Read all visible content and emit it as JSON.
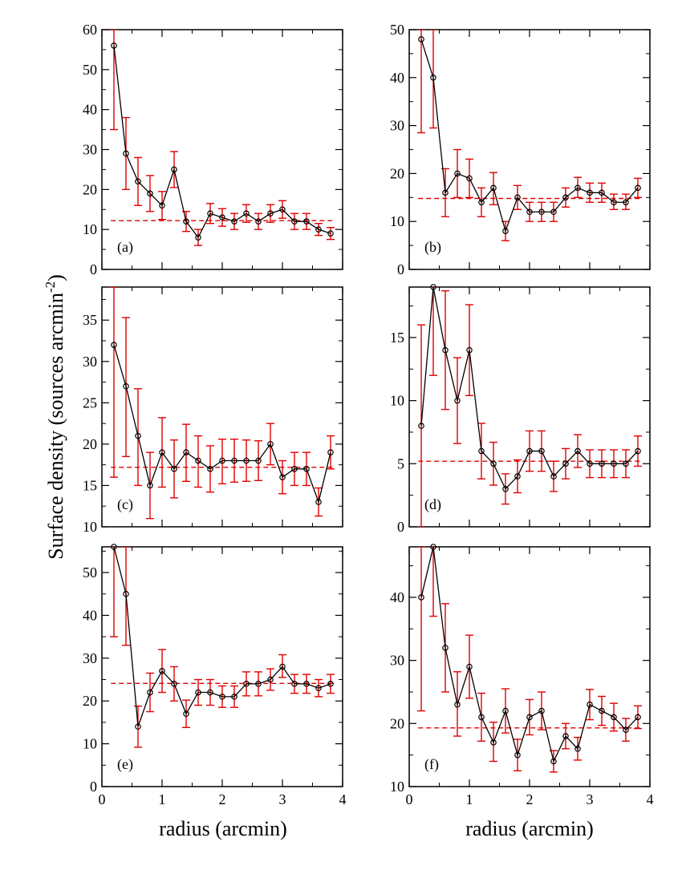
{
  "figure": {
    "ylabel_main": "Surface density (sources arcmin",
    "ylabel_exp": "-2",
    "ylabel_close": ")",
    "xlabel": "radius (arcmin)"
  },
  "colors": {
    "data": "#000000",
    "error": "#e00000",
    "mean": "#e00000"
  },
  "chart_data": [
    {
      "type": "line",
      "panel": "(a)",
      "xlim": [
        0,
        4
      ],
      "ylim": [
        0,
        60
      ],
      "xticks": [
        0,
        1,
        2,
        3,
        4
      ],
      "yticks": [
        0,
        10,
        20,
        30,
        40,
        50,
        60
      ],
      "x": [
        0.2,
        0.4,
        0.6,
        0.8,
        1.0,
        1.2,
        1.4,
        1.6,
        1.8,
        2.0,
        2.2,
        2.4,
        2.6,
        2.8,
        3.0,
        3.2,
        3.4,
        3.6,
        3.8
      ],
      "y": [
        56,
        29,
        22,
        19,
        16,
        25,
        12,
        8,
        14,
        13,
        12,
        14,
        12,
        14,
        15,
        12,
        12,
        10,
        9
      ],
      "yerr_low": [
        35,
        20,
        16,
        14.5,
        12.5,
        20.5,
        9.5,
        6,
        11.5,
        10.8,
        10,
        11.8,
        10,
        11.8,
        12.8,
        10,
        10,
        8.5,
        7.5
      ],
      "yerr_high": [
        60,
        38,
        28,
        23.5,
        19.5,
        29.5,
        14.5,
        10,
        16.5,
        15.2,
        14,
        16.2,
        14,
        16.2,
        17.2,
        14,
        14,
        11.5,
        10.5
      ],
      "mean": 12.2,
      "xtick_labels_shown": false
    },
    {
      "type": "line",
      "panel": "(b)",
      "xlim": [
        0,
        4
      ],
      "ylim": [
        0,
        50
      ],
      "xticks": [
        0,
        1,
        2,
        3,
        4
      ],
      "yticks": [
        0,
        10,
        20,
        30,
        40,
        50
      ],
      "x": [
        0.2,
        0.4,
        0.6,
        0.8,
        1.0,
        1.2,
        1.4,
        1.6,
        1.8,
        2.0,
        2.2,
        2.4,
        2.6,
        2.8,
        3.0,
        3.2,
        3.4,
        3.6,
        3.8
      ],
      "y": [
        48,
        40,
        16,
        20,
        19,
        14,
        17,
        8,
        15,
        12,
        12,
        12,
        15,
        17,
        16,
        16,
        14,
        14,
        17
      ],
      "yerr_low": [
        28.5,
        29.5,
        11,
        15,
        15,
        11,
        13.5,
        6,
        12.5,
        10,
        10,
        10,
        13,
        15,
        14,
        14,
        12.5,
        12.5,
        15
      ],
      "yerr_high": [
        50,
        50,
        21,
        25,
        23,
        17,
        20.2,
        10,
        17.5,
        14,
        14,
        14,
        17,
        19.2,
        18,
        18,
        15.7,
        15.7,
        19
      ],
      "mean": 14.8,
      "xtick_labels_shown": false
    },
    {
      "type": "line",
      "panel": "(c)",
      "xlim": [
        0,
        4
      ],
      "ylim": [
        10,
        39
      ],
      "xticks": [
        0,
        1,
        2,
        3,
        4
      ],
      "yticks": [
        10,
        15,
        20,
        25,
        30,
        35
      ],
      "x": [
        0.2,
        0.4,
        0.6,
        0.8,
        1.0,
        1.2,
        1.4,
        1.6,
        1.8,
        2.0,
        2.2,
        2.4,
        2.6,
        2.8,
        3.0,
        3.2,
        3.4,
        3.6,
        3.8
      ],
      "y": [
        32,
        27,
        21,
        15,
        19,
        17,
        19,
        18,
        17,
        18,
        18,
        18,
        18,
        20,
        16,
        17,
        17,
        13,
        19
      ],
      "yerr_low": [
        16,
        18.5,
        15,
        11,
        14.8,
        13.5,
        15.5,
        14.8,
        14.2,
        15.2,
        15.4,
        15.5,
        15.6,
        17.5,
        14,
        15,
        15,
        11.3,
        17
      ],
      "yerr_high": [
        39,
        35.3,
        26.7,
        19,
        23.2,
        20.5,
        22.4,
        21,
        19.8,
        20.6,
        20.6,
        20.5,
        20.4,
        22.5,
        18,
        19,
        19,
        14.7,
        21
      ],
      "mean": 17.2,
      "xtick_labels_shown": false
    },
    {
      "type": "line",
      "panel": "(d)",
      "xlim": [
        0,
        4
      ],
      "ylim": [
        0,
        19
      ],
      "xticks": [
        0,
        1,
        2,
        3,
        4
      ],
      "yticks": [
        0,
        5,
        10,
        15
      ],
      "x": [
        0.2,
        0.4,
        0.6,
        0.8,
        1.0,
        1.2,
        1.4,
        1.6,
        1.8,
        2.0,
        2.2,
        2.4,
        2.6,
        2.8,
        3.0,
        3.2,
        3.4,
        3.6,
        3.8
      ],
      "y": [
        8,
        19,
        14,
        10,
        14,
        6,
        5,
        3,
        4,
        6,
        6,
        4,
        5,
        6,
        5,
        5,
        5,
        5,
        6
      ],
      "yerr_low": [
        0,
        12,
        9.3,
        6.6,
        10.4,
        3.8,
        3.3,
        1.8,
        2.7,
        4.4,
        4.4,
        2.8,
        3.8,
        4.7,
        3.9,
        3.9,
        3.9,
        3.9,
        4.8
      ],
      "yerr_high": [
        16,
        19,
        18.7,
        13.4,
        17.6,
        8.2,
        6.7,
        4.2,
        5.3,
        7.6,
        7.6,
        5.2,
        6.2,
        7.3,
        6.1,
        6.1,
        6.1,
        6.1,
        7.2
      ],
      "mean": 5.2,
      "xtick_labels_shown": false
    },
    {
      "type": "line",
      "panel": "(e)",
      "xlim": [
        0,
        4
      ],
      "ylim": [
        0,
        56
      ],
      "xticks": [
        0,
        1,
        2,
        3,
        4
      ],
      "yticks": [
        0,
        10,
        20,
        30,
        40,
        50
      ],
      "x": [
        0.2,
        0.4,
        0.6,
        0.8,
        1.0,
        1.2,
        1.4,
        1.6,
        1.8,
        2.0,
        2.2,
        2.4,
        2.6,
        2.8,
        3.0,
        3.2,
        3.4,
        3.6,
        3.8
      ],
      "y": [
        56,
        45,
        14,
        22,
        27,
        24,
        17,
        22,
        22,
        21,
        21,
        24,
        24,
        25,
        28,
        24,
        24,
        23,
        24
      ],
      "yerr_low": [
        35,
        33,
        9.2,
        17.5,
        22,
        20,
        13.8,
        19,
        19,
        18.5,
        18.5,
        21.2,
        21.2,
        22.5,
        25.5,
        21.8,
        21.8,
        21,
        21.8
      ],
      "yerr_high": [
        56,
        56,
        18.8,
        26.5,
        32,
        28,
        20.2,
        25,
        25,
        23.5,
        23.5,
        26.8,
        26.8,
        27.5,
        30.8,
        26.2,
        26.2,
        25,
        26.2
      ],
      "mean": 24.1,
      "xtick_labels_shown": true
    },
    {
      "type": "line",
      "panel": "(f)",
      "xlim": [
        0,
        4
      ],
      "ylim": [
        10,
        48
      ],
      "xticks": [
        0,
        1,
        2,
        3,
        4
      ],
      "yticks": [
        10,
        20,
        30,
        40
      ],
      "x": [
        0.2,
        0.4,
        0.6,
        0.8,
        1.0,
        1.2,
        1.4,
        1.6,
        1.8,
        2.0,
        2.2,
        2.4,
        2.6,
        2.8,
        3.0,
        3.2,
        3.4,
        3.6,
        3.8
      ],
      "y": [
        40,
        48,
        32,
        23,
        29,
        21,
        17,
        22,
        15,
        21,
        22,
        14,
        18,
        16,
        23,
        22,
        21,
        19,
        21
      ],
      "yerr_low": [
        22,
        37,
        25,
        18,
        24,
        17.2,
        14,
        18.5,
        12.5,
        18.2,
        19,
        12.3,
        16,
        14.2,
        20.6,
        19.7,
        18.8,
        17.2,
        19.2
      ],
      "yerr_high": [
        48,
        48,
        39,
        28.2,
        34,
        24.8,
        20.2,
        25.5,
        17.5,
        23.8,
        25,
        15.7,
        20,
        17.8,
        25.4,
        24.3,
        23.2,
        20.8,
        22.8
      ],
      "mean": 19.3,
      "xtick_labels_shown": true
    }
  ]
}
